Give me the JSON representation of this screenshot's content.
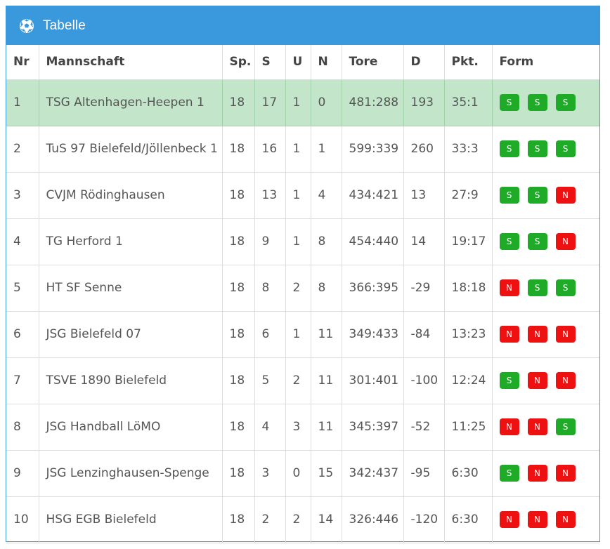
{
  "header": {
    "title": "Tabelle",
    "icon": "soccer-ball-icon",
    "color": "#3a99dd"
  },
  "columns": [
    "Nr",
    "Mannschaft",
    "Sp.",
    "S",
    "U",
    "N",
    "Tore",
    "D",
    "Pkt.",
    "Form"
  ],
  "colors": {
    "win": "#1fab27",
    "loss": "#ee1111",
    "highlight": "#c3e6cb"
  },
  "rows": [
    {
      "nr": "1",
      "team": "TSG Altenhagen-Heepen 1",
      "sp": "18",
      "s": "17",
      "u": "1",
      "n": "0",
      "tore": "481:288",
      "d": "193",
      "pkt": "35:1",
      "form": [
        "S",
        "S",
        "S"
      ]
    },
    {
      "nr": "2",
      "team": "TuS 97 Bielefeld/Jöllenbeck 1",
      "sp": "18",
      "s": "16",
      "u": "1",
      "n": "1",
      "tore": "599:339",
      "d": "260",
      "pkt": "33:3",
      "form": [
        "S",
        "S",
        "S"
      ]
    },
    {
      "nr": "3",
      "team": "CVJM Rödinghausen",
      "sp": "18",
      "s": "13",
      "u": "1",
      "n": "4",
      "tore": "434:421",
      "d": "13",
      "pkt": "27:9",
      "form": [
        "S",
        "S",
        "N"
      ]
    },
    {
      "nr": "4",
      "team": "TG Herford 1",
      "sp": "18",
      "s": "9",
      "u": "1",
      "n": "8",
      "tore": "454:440",
      "d": "14",
      "pkt": "19:17",
      "form": [
        "S",
        "S",
        "N"
      ]
    },
    {
      "nr": "5",
      "team": "HT SF Senne",
      "sp": "18",
      "s": "8",
      "u": "2",
      "n": "8",
      "tore": "366:395",
      "d": "-29",
      "pkt": "18:18",
      "form": [
        "N",
        "S",
        "S"
      ]
    },
    {
      "nr": "6",
      "team": "JSG Bielefeld 07",
      "sp": "18",
      "s": "6",
      "u": "1",
      "n": "11",
      "tore": "349:433",
      "d": "-84",
      "pkt": "13:23",
      "form": [
        "N",
        "N",
        "N"
      ]
    },
    {
      "nr": "7",
      "team": "TSVE 1890 Bielefeld",
      "sp": "18",
      "s": "5",
      "u": "2",
      "n": "11",
      "tore": "301:401",
      "d": "-100",
      "pkt": "12:24",
      "form": [
        "S",
        "N",
        "N"
      ]
    },
    {
      "nr": "8",
      "team": "JSG Handball LöMO",
      "sp": "18",
      "s": "4",
      "u": "3",
      "n": "11",
      "tore": "345:397",
      "d": "-52",
      "pkt": "11:25",
      "form": [
        "N",
        "N",
        "S"
      ]
    },
    {
      "nr": "9",
      "team": "JSG Lenzinghausen-Spenge",
      "sp": "18",
      "s": "3",
      "u": "0",
      "n": "15",
      "tore": "342:437",
      "d": "-95",
      "pkt": "6:30",
      "form": [
        "S",
        "N",
        "N"
      ]
    },
    {
      "nr": "10",
      "team": "HSG EGB Bielefeld",
      "sp": "18",
      "s": "2",
      "u": "2",
      "n": "14",
      "tore": "326:446",
      "d": "-120",
      "pkt": "6:30",
      "form": [
        "N",
        "N",
        "N"
      ]
    }
  ]
}
